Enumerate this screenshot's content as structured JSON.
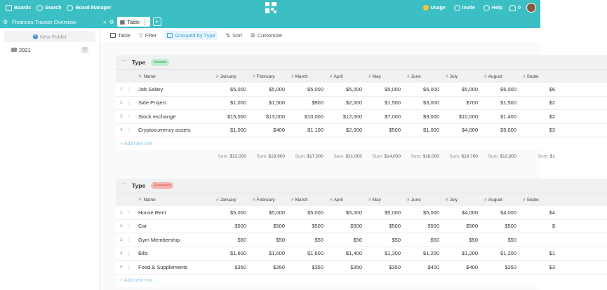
{
  "topbar": {
    "boards": "Boards",
    "search": "Search",
    "board_manager": "Board Manager",
    "usage": "Usage",
    "invite": "Invite",
    "help": "Help",
    "notifications": "0"
  },
  "board": {
    "title": "Finances Tracker Overview",
    "active_tab": "Table"
  },
  "sidebar": {
    "new_folder": "New Folder",
    "folders": [
      {
        "name": "2021",
        "count": "0"
      }
    ]
  },
  "toolbar": {
    "table": "Table",
    "filter": "Filter",
    "grouped_by": "Grouped by Type",
    "sort": "Sort",
    "customize": "Customize"
  },
  "columns": [
    "Name",
    "January",
    "February",
    "March",
    "April",
    "May",
    "June",
    "July",
    "August",
    "Septe"
  ],
  "groups": [
    {
      "label": "Type",
      "tag": "Income",
      "rows": [
        {
          "num": "1",
          "name": "Job Salary",
          "values": [
            "$5,000",
            "$5,000",
            "$5,000",
            "$5,000",
            "$5,000",
            "$5,000",
            "$5,000",
            "$6,000",
            "$6"
          ]
        },
        {
          "num": "2",
          "name": "Side Project",
          "values": [
            "$1,000",
            "$1,500",
            "$900",
            "$2,000",
            "$1,500",
            "$3,000",
            "$700",
            "$1,500",
            "$2"
          ]
        },
        {
          "num": "3",
          "name": "Stock exchange",
          "values": [
            "$15,000",
            "$13,000",
            "$10,000",
            "$12,000",
            "$7,000",
            "$9,000",
            "$10,000",
            "$1,400",
            "$2"
          ]
        },
        {
          "num": "4",
          "name": "Cryptocurrency assets",
          "values": [
            "$1,000",
            "$400",
            "$1,100",
            "$2,000",
            "$500",
            "$1,000",
            "$4,000",
            "$5,000",
            "$3"
          ]
        }
      ],
      "add_row": "+ Add new row",
      "sum_label": "Sum:",
      "sums": [
        "$22,000",
        "$19,900",
        "$17,000",
        "$21,000",
        "$14,000",
        "$18,000",
        "$19,700",
        "$13,900",
        "$1"
      ]
    },
    {
      "label": "Type",
      "tag": "Expenses",
      "rows": [
        {
          "num": "1",
          "name": "House Rent",
          "values": [
            "$5,000",
            "$5,000",
            "$5,000",
            "$5,000",
            "$5,000",
            "$5,000",
            "$4,000",
            "$4,000",
            "$4"
          ]
        },
        {
          "num": "2",
          "name": "Car",
          "values": [
            "$500",
            "$500",
            "$500",
            "$500",
            "$500",
            "$500",
            "$500",
            "$500",
            "$"
          ]
        },
        {
          "num": "3",
          "name": "Gym Membership",
          "values": [
            "$50",
            "$50",
            "$50",
            "$50",
            "$50",
            "$50",
            "$50",
            "$50",
            ""
          ]
        },
        {
          "num": "4",
          "name": "Bills",
          "values": [
            "$1,600",
            "$1,600",
            "$1,600",
            "$1,400",
            "$1,300",
            "$1,200",
            "$1,200",
            "$1,200",
            "$1"
          ]
        },
        {
          "num": "5",
          "name": "Food & Supplements",
          "values": [
            "$350",
            "$350",
            "$350",
            "$350",
            "$350",
            "$400",
            "$400",
            "$350",
            "$3"
          ]
        }
      ],
      "add_row": "+ Add new row"
    }
  ]
}
